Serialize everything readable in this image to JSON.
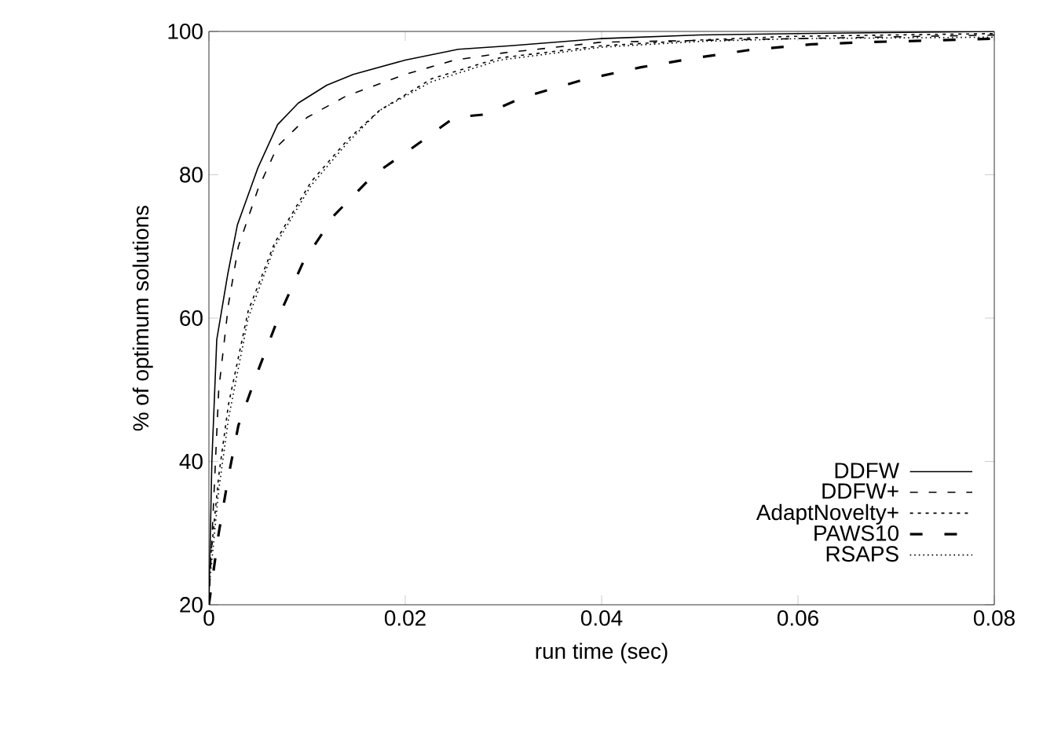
{
  "chart_data": {
    "type": "line",
    "xlabel": "run time (sec)",
    "ylabel": "% of optimum solutions",
    "xlim": [
      0,
      0.08
    ],
    "ylim": [
      20,
      100
    ],
    "xticks": [
      0,
      0.02,
      0.04,
      0.06,
      0.08
    ],
    "yticks": [
      20,
      40,
      60,
      80,
      100
    ],
    "grid": false,
    "legend": "bottom right",
    "series": [
      {
        "name": "DDFW",
        "color": "#000000",
        "line_style": "solid",
        "x": [
          0,
          0.0003,
          0.0008,
          0.0019,
          0.0029,
          0.005,
          0.007,
          0.0091,
          0.012,
          0.0147,
          0.02,
          0.0254,
          0.0307,
          0.04,
          0.05,
          0.06,
          0.08
        ],
        "values": [
          20,
          40,
          57,
          66,
          73,
          81,
          87,
          90,
          92.5,
          94,
          96,
          97.5,
          98,
          99,
          99.5,
          99.7,
          100
        ]
      },
      {
        "name": "DDFW+",
        "color": "#000000",
        "line_style": "dashed",
        "x": [
          0,
          0.0005,
          0.001,
          0.002,
          0.003,
          0.005,
          0.007,
          0.01,
          0.014,
          0.02,
          0.025,
          0.03,
          0.04,
          0.06,
          0.08
        ],
        "values": [
          20,
          35,
          50,
          62,
          70,
          78,
          84,
          88,
          91,
          94,
          96,
          97,
          98.5,
          99,
          99.5
        ]
      },
      {
        "name": "AdaptNovelty+",
        "color": "#000000",
        "line_style": "dashed",
        "x": [
          0,
          0.001,
          0.002,
          0.004,
          0.0067,
          0.0104,
          0.0142,
          0.0174,
          0.0227,
          0.0296,
          0.04,
          0.05,
          0.059,
          0.08
        ],
        "values": [
          24,
          38,
          48,
          61,
          70.5,
          79,
          85,
          89,
          93.4,
          96.3,
          98,
          98.8,
          99.3,
          99.7
        ]
      },
      {
        "name": "PAWS10",
        "color": "#000000",
        "line_style": "dashed",
        "x": [
          0,
          0.001,
          0.002,
          0.003,
          0.0051,
          0.0072,
          0.0096,
          0.0128,
          0.0168,
          0.0216,
          0.025,
          0.028,
          0.032,
          0.038,
          0.044,
          0.0496,
          0.055,
          0.0614,
          0.067,
          0.078,
          0.08
        ],
        "values": [
          20,
          30,
          38,
          45,
          53,
          60.5,
          67.8,
          74.4,
          80,
          84.6,
          88,
          88.4,
          90.8,
          93.2,
          95,
          96.3,
          97.4,
          98.2,
          98.5,
          98.9,
          99
        ]
      },
      {
        "name": "RSAPS",
        "color": "#000000",
        "line_style": "dotted",
        "x": [
          0,
          0.001,
          0.002,
          0.004,
          0.0067,
          0.0104,
          0.0142,
          0.0174,
          0.0227,
          0.0296,
          0.04,
          0.05,
          0.06,
          0.08
        ],
        "values": [
          22,
          36,
          46,
          60,
          70,
          78.5,
          84.6,
          89,
          93,
          96,
          97.8,
          98.6,
          99,
          99.2
        ]
      }
    ]
  }
}
